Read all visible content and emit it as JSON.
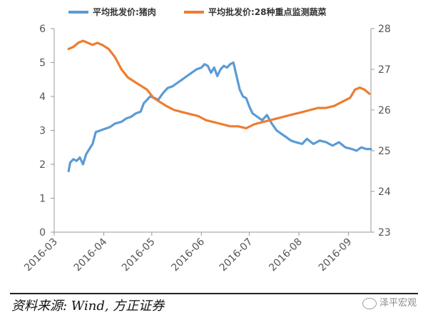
{
  "chart_data": {
    "type": "line",
    "series": [
      {
        "name": "平均批发价:猪肉",
        "axis": "left",
        "color": "#5b9bd5",
        "points": [
          [
            "2016-03-10",
            1.8
          ],
          [
            "2016-03-11",
            2.05
          ],
          [
            "2016-03-13",
            2.15
          ],
          [
            "2016-03-15",
            2.1
          ],
          [
            "2016-03-17",
            2.2
          ],
          [
            "2016-03-19",
            2.0
          ],
          [
            "2016-03-21",
            2.3
          ],
          [
            "2016-03-23",
            2.45
          ],
          [
            "2016-03-25",
            2.6
          ],
          [
            "2016-03-27",
            2.95
          ],
          [
            "2016-03-30",
            3.0
          ],
          [
            "2016-04-02",
            3.05
          ],
          [
            "2016-04-05",
            3.1
          ],
          [
            "2016-04-08",
            3.2
          ],
          [
            "2016-04-12",
            3.25
          ],
          [
            "2016-04-15",
            3.35
          ],
          [
            "2016-04-18",
            3.4
          ],
          [
            "2016-04-21",
            3.5
          ],
          [
            "2016-04-24",
            3.55
          ],
          [
            "2016-04-26",
            3.8
          ],
          [
            "2016-04-28",
            3.9
          ],
          [
            "2016-04-30",
            4.0
          ],
          [
            "2016-05-03",
            3.95
          ],
          [
            "2016-05-05",
            3.9
          ],
          [
            "2016-05-08",
            4.1
          ],
          [
            "2016-05-11",
            4.25
          ],
          [
            "2016-05-14",
            4.3
          ],
          [
            "2016-05-17",
            4.4
          ],
          [
            "2016-05-20",
            4.5
          ],
          [
            "2016-05-23",
            4.6
          ],
          [
            "2016-05-26",
            4.7
          ],
          [
            "2016-05-29",
            4.8
          ],
          [
            "2016-06-01",
            4.85
          ],
          [
            "2016-06-03",
            4.95
          ],
          [
            "2016-06-05",
            4.9
          ],
          [
            "2016-06-07",
            4.7
          ],
          [
            "2016-06-09",
            4.85
          ],
          [
            "2016-06-11",
            4.6
          ],
          [
            "2016-06-13",
            4.8
          ],
          [
            "2016-06-15",
            4.9
          ],
          [
            "2016-06-17",
            4.85
          ],
          [
            "2016-06-19",
            4.95
          ],
          [
            "2016-06-21",
            5.0
          ],
          [
            "2016-06-23",
            4.6
          ],
          [
            "2016-06-25",
            4.2
          ],
          [
            "2016-06-27",
            4.0
          ],
          [
            "2016-06-29",
            3.95
          ],
          [
            "2016-07-01",
            3.7
          ],
          [
            "2016-07-03",
            3.5
          ],
          [
            "2016-07-06",
            3.4
          ],
          [
            "2016-07-09",
            3.3
          ],
          [
            "2016-07-12",
            3.45
          ],
          [
            "2016-07-15",
            3.2
          ],
          [
            "2016-07-18",
            3.0
          ],
          [
            "2016-07-21",
            2.9
          ],
          [
            "2016-07-24",
            2.8
          ],
          [
            "2016-07-27",
            2.7
          ],
          [
            "2016-07-30",
            2.65
          ],
          [
            "2016-08-03",
            2.6
          ],
          [
            "2016-08-06",
            2.75
          ],
          [
            "2016-08-10",
            2.6
          ],
          [
            "2016-08-14",
            2.7
          ],
          [
            "2016-08-18",
            2.65
          ],
          [
            "2016-08-22",
            2.55
          ],
          [
            "2016-08-26",
            2.65
          ],
          [
            "2016-08-30",
            2.5
          ],
          [
            "2016-09-03",
            2.45
          ],
          [
            "2016-09-06",
            2.4
          ],
          [
            "2016-09-09",
            2.5
          ],
          [
            "2016-09-12",
            2.45
          ],
          [
            "2016-09-15",
            2.45
          ]
        ]
      },
      {
        "name": "平均批发价:28种重点监测蔬菜",
        "axis": "right",
        "color": "#ed7d31",
        "points": [
          [
            "2016-03-10",
            27.5
          ],
          [
            "2016-03-13",
            27.55
          ],
          [
            "2016-03-16",
            27.65
          ],
          [
            "2016-03-19",
            27.7
          ],
          [
            "2016-03-22",
            27.65
          ],
          [
            "2016-03-25",
            27.6
          ],
          [
            "2016-03-28",
            27.65
          ],
          [
            "2016-03-31",
            27.6
          ],
          [
            "2016-04-04",
            27.5
          ],
          [
            "2016-04-08",
            27.3
          ],
          [
            "2016-04-12",
            27.0
          ],
          [
            "2016-04-16",
            26.8
          ],
          [
            "2016-04-20",
            26.7
          ],
          [
            "2016-04-24",
            26.6
          ],
          [
            "2016-04-28",
            26.5
          ],
          [
            "2016-05-02",
            26.3
          ],
          [
            "2016-05-06",
            26.2
          ],
          [
            "2016-05-10",
            26.1
          ],
          [
            "2016-05-15",
            26.0
          ],
          [
            "2016-05-20",
            25.95
          ],
          [
            "2016-05-25",
            25.9
          ],
          [
            "2016-05-30",
            25.85
          ],
          [
            "2016-06-04",
            25.75
          ],
          [
            "2016-06-09",
            25.7
          ],
          [
            "2016-06-14",
            25.65
          ],
          [
            "2016-06-19",
            25.6
          ],
          [
            "2016-06-24",
            25.6
          ],
          [
            "2016-06-29",
            25.55
          ],
          [
            "2016-07-04",
            25.65
          ],
          [
            "2016-07-09",
            25.7
          ],
          [
            "2016-07-14",
            25.75
          ],
          [
            "2016-07-19",
            25.8
          ],
          [
            "2016-07-24",
            25.85
          ],
          [
            "2016-07-29",
            25.9
          ],
          [
            "2016-08-03",
            25.95
          ],
          [
            "2016-08-08",
            26.0
          ],
          [
            "2016-08-13",
            26.05
          ],
          [
            "2016-08-18",
            26.05
          ],
          [
            "2016-08-23",
            26.1
          ],
          [
            "2016-08-28",
            26.2
          ],
          [
            "2016-09-02",
            26.3
          ],
          [
            "2016-09-05",
            26.5
          ],
          [
            "2016-09-08",
            26.55
          ],
          [
            "2016-09-11",
            26.5
          ],
          [
            "2016-09-14",
            26.4
          ]
        ]
      }
    ],
    "x_ticks": [
      "2016-03",
      "2016-04",
      "2016-05",
      "2016-06",
      "2016-07",
      "2016-08",
      "2016-09"
    ],
    "x_range": [
      "2016-03-01",
      "2016-09-15"
    ],
    "y_left": {
      "min": 0,
      "max": 6,
      "ticks": [
        "0",
        "1",
        "2",
        "3",
        "4",
        "5",
        "6"
      ]
    },
    "y_right": {
      "min": 23,
      "max": 28,
      "ticks": [
        "23",
        "24",
        "25",
        "26",
        "27",
        "28"
      ]
    },
    "legend_position": "top",
    "grid": false
  },
  "footer": {
    "source": "资料来源: Wind, 方正证券",
    "watermark": "泽平宏观"
  }
}
